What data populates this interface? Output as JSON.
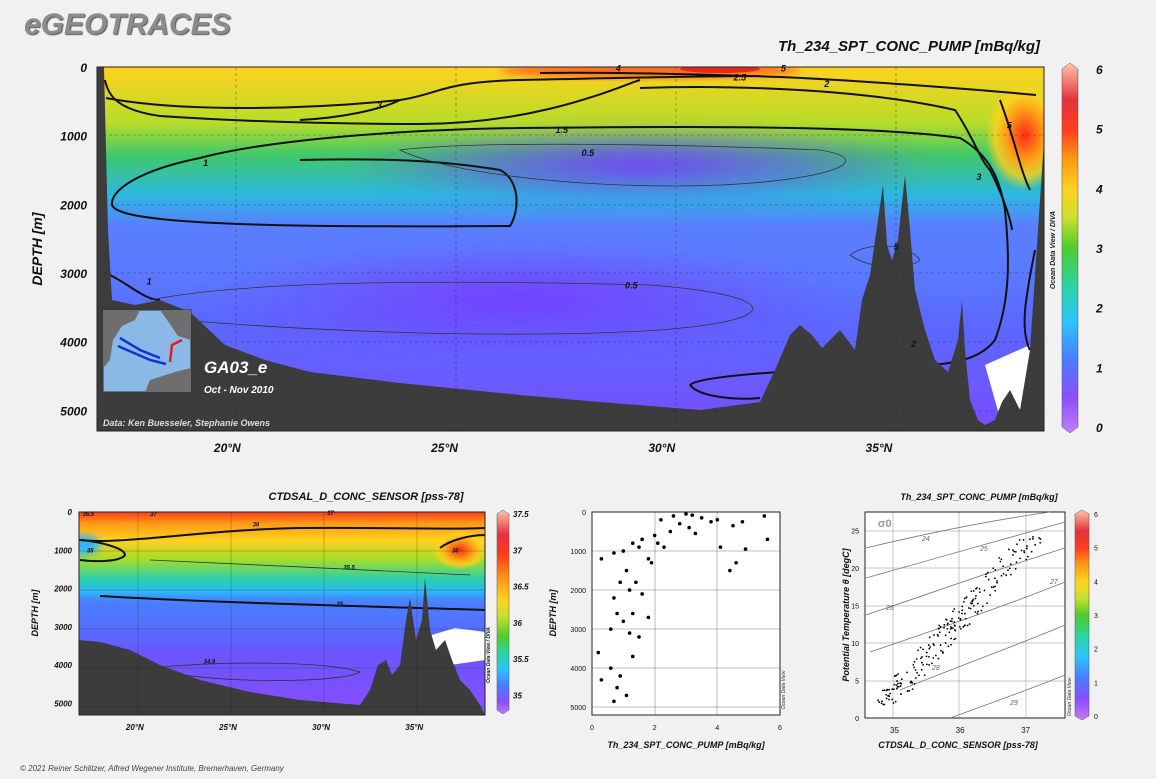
{
  "header": {
    "logo": "eGEOTRACES",
    "credit": "© 2021 Reiner Schlitzer, Alfred Wegener Institute, Bremerhaven, Germany"
  },
  "inset": {
    "cruise": "GA03_e",
    "dates": "Oct - Nov 2010",
    "data_credit": "Data: Ken Buesseler, Stephanie Owens"
  },
  "odv_label": "Ocean Data View / DIVA",
  "odv_short": "Ocean Data View",
  "colors": {
    "plot_bg": "#7b4cff",
    "terrain": "#3c3c3c"
  },
  "chart_data": [
    {
      "type": "heatmap",
      "title": "Th_234_SPT_CONC_PUMP [mBq/kg]",
      "ylabel": "DEPTH [m]",
      "x_ticks": [
        "20°N",
        "25°N",
        "30°N",
        "35°N"
      ],
      "y_ticks": [
        "0",
        "1000",
        "2000",
        "3000",
        "4000",
        "5000"
      ],
      "xlim": [
        17,
        38.8
      ],
      "ylim": [
        5300,
        0
      ],
      "colorbar": {
        "ticks": [
          "0",
          "1",
          "2",
          "3",
          "4",
          "5",
          "6"
        ],
        "range": [
          0,
          6
        ]
      },
      "contour_labels": [
        {
          "text": "4",
          "x": 29,
          "y": 20
        },
        {
          "text": "5",
          "x": 32.8,
          "y": 20
        },
        {
          "text": "2.5",
          "x": 31.8,
          "y": 150
        },
        {
          "text": "2",
          "x": 33.8,
          "y": 250
        },
        {
          "text": "3",
          "x": 23.5,
          "y": 560
        },
        {
          "text": "1.5",
          "x": 27.7,
          "y": 920
        },
        {
          "text": "0.5",
          "x": 28.3,
          "y": 1250
        },
        {
          "text": "1",
          "x": 19.5,
          "y": 1400
        },
        {
          "text": "0.5",
          "x": 29.3,
          "y": 3180
        },
        {
          "text": "1",
          "x": 18.2,
          "y": 3120
        },
        {
          "text": "5",
          "x": 35.4,
          "y": 2620
        },
        {
          "text": "2",
          "x": 35.8,
          "y": 4030
        },
        {
          "text": "3",
          "x": 37.3,
          "y": 1600
        },
        {
          "text": "5",
          "x": 38,
          "y": 850
        }
      ]
    },
    {
      "type": "heatmap",
      "title": "CTDSAL_D_CONC_SENSOR [pss-78]",
      "ylabel": "DEPTH [m]",
      "x_ticks": [
        "20°N",
        "25°N",
        "30°N",
        "35°N"
      ],
      "y_ticks": [
        "0",
        "1000",
        "2000",
        "3000",
        "4000",
        "5000"
      ],
      "xlim": [
        17,
        38.8
      ],
      "ylim": [
        5300,
        0
      ],
      "colorbar": {
        "ticks": [
          "35",
          "35.5",
          "36",
          "36.5",
          "37",
          "37.5"
        ],
        "range": [
          34.8,
          37.5
        ]
      },
      "contour_labels": [
        {
          "text": "36.5",
          "x": 17.5,
          "y": 50
        },
        {
          "text": "37",
          "x": 21,
          "y": 50
        },
        {
          "text": "37",
          "x": 30.5,
          "y": 30
        },
        {
          "text": "36",
          "x": 26.5,
          "y": 320
        },
        {
          "text": "35",
          "x": 17.6,
          "y": 1000
        },
        {
          "text": "35.5",
          "x": 31.5,
          "y": 1450
        },
        {
          "text": "35",
          "x": 31,
          "y": 2400
        },
        {
          "text": "36",
          "x": 37.2,
          "y": 1000
        },
        {
          "text": "34.9",
          "x": 24,
          "y": 3900
        }
      ]
    },
    {
      "type": "scatter",
      "xlabel": "Th_234_SPT_CONC_PUMP [mBq/kg]",
      "ylabel": "DEPTH [m]",
      "x_ticks": [
        "0",
        "2",
        "4",
        "6"
      ],
      "y_ticks": [
        "0",
        "1000",
        "2000",
        "3000",
        "4000",
        "5000"
      ],
      "xlim": [
        0,
        6
      ],
      "ylim": [
        5200,
        0
      ],
      "points": [
        [
          3.0,
          50
        ],
        [
          2.6,
          100
        ],
        [
          3.2,
          80
        ],
        [
          3.5,
          150
        ],
        [
          2.2,
          200
        ],
        [
          3.8,
          250
        ],
        [
          2.8,
          300
        ],
        [
          4.0,
          200
        ],
        [
          4.5,
          350
        ],
        [
          3.1,
          400
        ],
        [
          2.5,
          500
        ],
        [
          5.5,
          100
        ],
        [
          4.8,
          250
        ],
        [
          3.3,
          550
        ],
        [
          2.0,
          600
        ],
        [
          1.6,
          700
        ],
        [
          2.3,
          900
        ],
        [
          1.0,
          1000
        ],
        [
          0.7,
          1050
        ],
        [
          5.6,
          700
        ],
        [
          4.1,
          900
        ],
        [
          4.9,
          950
        ],
        [
          1.3,
          800
        ],
        [
          1.5,
          900
        ],
        [
          2.1,
          800
        ],
        [
          1.1,
          1500
        ],
        [
          1.8,
          1200
        ],
        [
          1.9,
          1300
        ],
        [
          4.6,
          1300
        ],
        [
          4.4,
          1500
        ],
        [
          0.3,
          1200
        ],
        [
          0.9,
          1800
        ],
        [
          1.2,
          2000
        ],
        [
          1.4,
          1800
        ],
        [
          0.7,
          2200
        ],
        [
          1.6,
          2100
        ],
        [
          1.3,
          2600
        ],
        [
          0.8,
          2600
        ],
        [
          1.0,
          2800
        ],
        [
          0.6,
          3000
        ],
        [
          1.2,
          3100
        ],
        [
          1.5,
          3200
        ],
        [
          1.8,
          2700
        ],
        [
          0.2,
          3600
        ],
        [
          1.3,
          3700
        ],
        [
          0.6,
          4000
        ],
        [
          0.9,
          4200
        ],
        [
          0.3,
          4300
        ],
        [
          0.8,
          4500
        ],
        [
          1.1,
          4700
        ],
        [
          0.7,
          4850
        ]
      ]
    },
    {
      "type": "scatter",
      "title": "Th_234_SPT_CONC_PUMP [mBq/kg]",
      "xlabel": "CTDSAL_D_CONC_SENSOR [pss-78]",
      "ylabel": "Potential Temperature θ [degC]",
      "x_ticks": [
        "35",
        "36",
        "37"
      ],
      "y_ticks": [
        "0",
        "5",
        "10",
        "15",
        "20",
        "25"
      ],
      "xlim": [
        34.55,
        37.6
      ],
      "ylim": [
        0,
        27.5
      ],
      "sigma_label": "σ0",
      "isopycnal_labels": [
        "24",
        "25",
        "26",
        "27",
        "28",
        "29"
      ],
      "colorbar": {
        "ticks": [
          "0",
          "1",
          "2",
          "3",
          "4",
          "5",
          "6"
        ],
        "range": [
          0,
          6
        ]
      }
    }
  ]
}
